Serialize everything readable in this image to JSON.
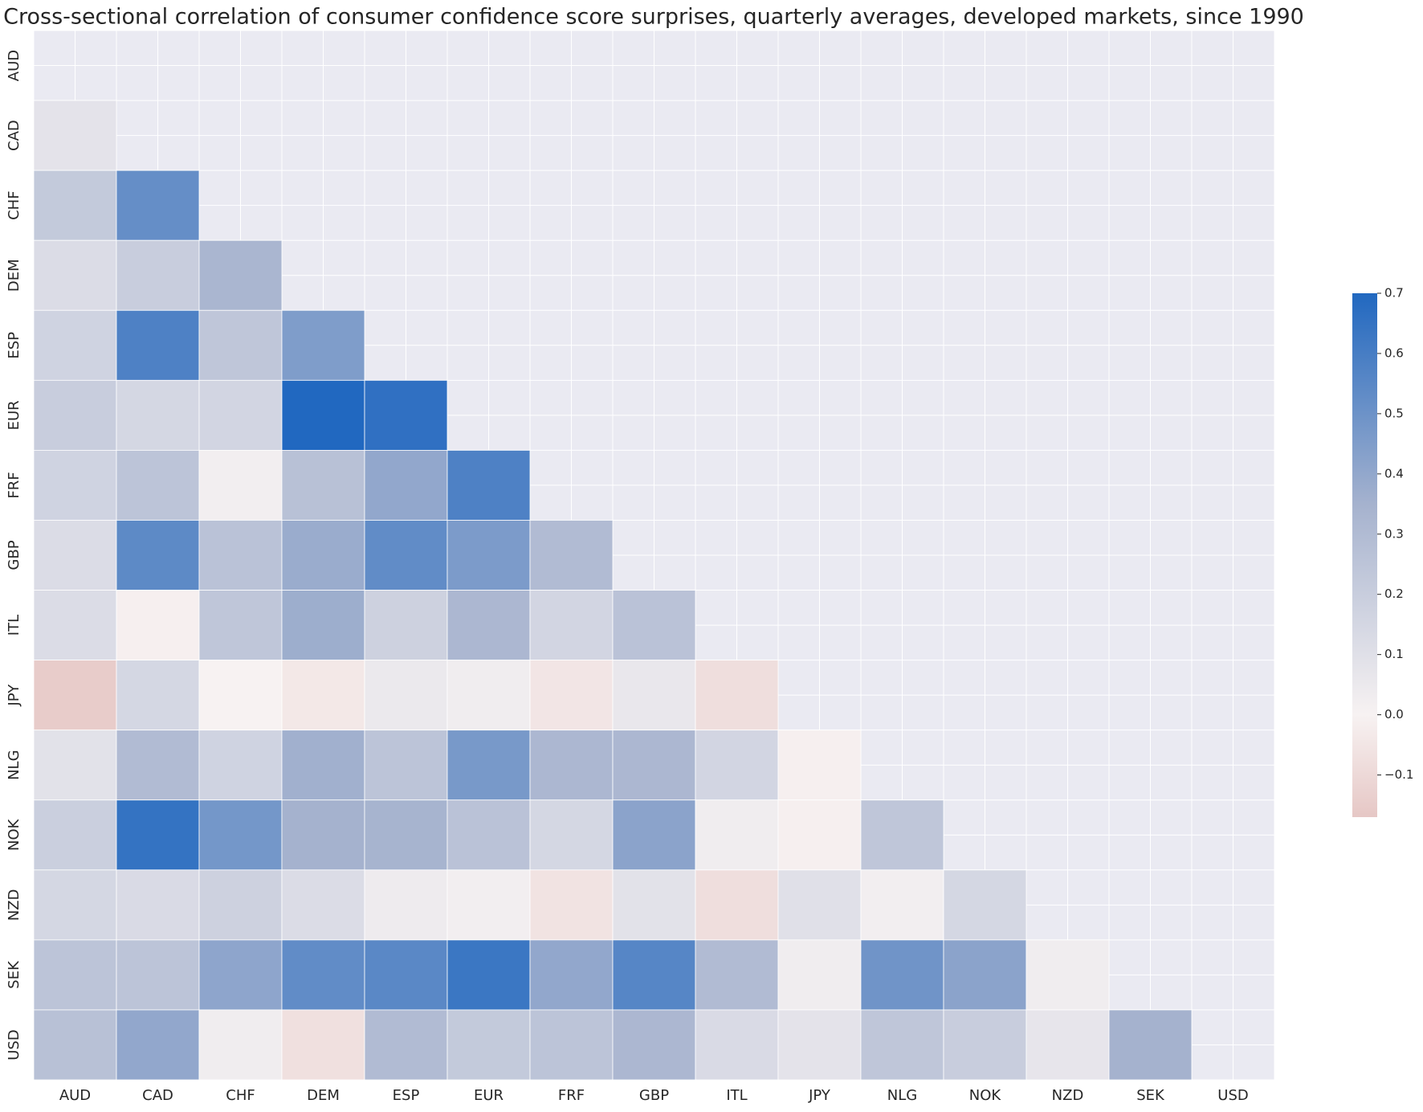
{
  "chart_data": {
    "type": "heatmap",
    "title": "Cross-sectional correlation of consumer confidence score surprises, quarterly averages, developed markets, since 1990",
    "categories": [
      "AUD",
      "CAD",
      "CHF",
      "DEM",
      "ESP",
      "EUR",
      "FRF",
      "GBP",
      "ITL",
      "JPY",
      "NLG",
      "NOK",
      "NZD",
      "SEK",
      "USD"
    ],
    "values": [
      [
        null,
        null,
        null,
        null,
        null,
        null,
        null,
        null,
        null,
        null,
        null,
        null,
        null,
        null,
        null
      ],
      [
        0.08,
        null,
        null,
        null,
        null,
        null,
        null,
        null,
        null,
        null,
        null,
        null,
        null,
        null,
        null
      ],
      [
        0.22,
        0.52,
        null,
        null,
        null,
        null,
        null,
        null,
        null,
        null,
        null,
        null,
        null,
        null,
        null
      ],
      [
        0.12,
        0.2,
        0.33,
        null,
        null,
        null,
        null,
        null,
        null,
        null,
        null,
        null,
        null,
        null,
        null
      ],
      [
        0.17,
        0.58,
        0.24,
        0.45,
        null,
        null,
        null,
        null,
        null,
        null,
        null,
        null,
        null,
        null,
        null
      ],
      [
        0.2,
        0.15,
        0.16,
        0.7,
        0.66,
        null,
        null,
        null,
        null,
        null,
        null,
        null,
        null,
        null,
        null
      ],
      [
        0.17,
        0.25,
        0.02,
        0.27,
        0.4,
        0.58,
        null,
        null,
        null,
        null,
        null,
        null,
        null,
        null,
        null
      ],
      [
        0.12,
        0.54,
        0.26,
        0.38,
        0.53,
        0.46,
        0.3,
        null,
        null,
        null,
        null,
        null,
        null,
        null,
        null
      ],
      [
        0.12,
        -0.01,
        0.24,
        0.37,
        0.18,
        0.32,
        0.16,
        0.26,
        null,
        null,
        null,
        null,
        null,
        null,
        null
      ],
      [
        -0.15,
        0.15,
        0.0,
        -0.04,
        0.05,
        0.03,
        -0.05,
        0.06,
        -0.08,
        null,
        null,
        null,
        null,
        null,
        null
      ],
      [
        0.09,
        0.3,
        0.17,
        0.36,
        0.25,
        0.47,
        0.32,
        0.32,
        0.16,
        -0.01,
        null,
        null,
        null,
        null,
        null
      ],
      [
        0.19,
        0.65,
        0.48,
        0.35,
        0.34,
        0.26,
        0.15,
        0.42,
        0.03,
        -0.01,
        0.24,
        null,
        null,
        null,
        null
      ],
      [
        0.15,
        0.13,
        0.18,
        0.12,
        0.04,
        0.02,
        -0.06,
        0.09,
        -0.08,
        0.1,
        0.02,
        0.15,
        null,
        null,
        null
      ],
      [
        0.25,
        0.25,
        0.41,
        0.53,
        0.55,
        0.63,
        0.4,
        0.56,
        0.3,
        0.03,
        0.49,
        0.42,
        0.03,
        null,
        null
      ],
      [
        0.27,
        0.4,
        0.03,
        -0.07,
        0.3,
        0.22,
        0.25,
        0.32,
        0.13,
        0.08,
        0.24,
        0.2,
        0.07,
        0.35,
        null
      ]
    ],
    "colorbar": {
      "lim": [
        -0.17,
        0.7
      ],
      "ticks": [
        {
          "value": -0.1,
          "label": "−0.1"
        },
        {
          "value": 0,
          "label": "0.0"
        },
        0.1,
        0.2,
        0.3,
        0.4,
        0.5,
        0.6,
        0.7
      ],
      "colors": [
        "#e6c7c5",
        "#f7f2f2",
        "#a5b2ce",
        "#2168c0"
      ]
    },
    "mask_color": "#eaeaf2"
  }
}
